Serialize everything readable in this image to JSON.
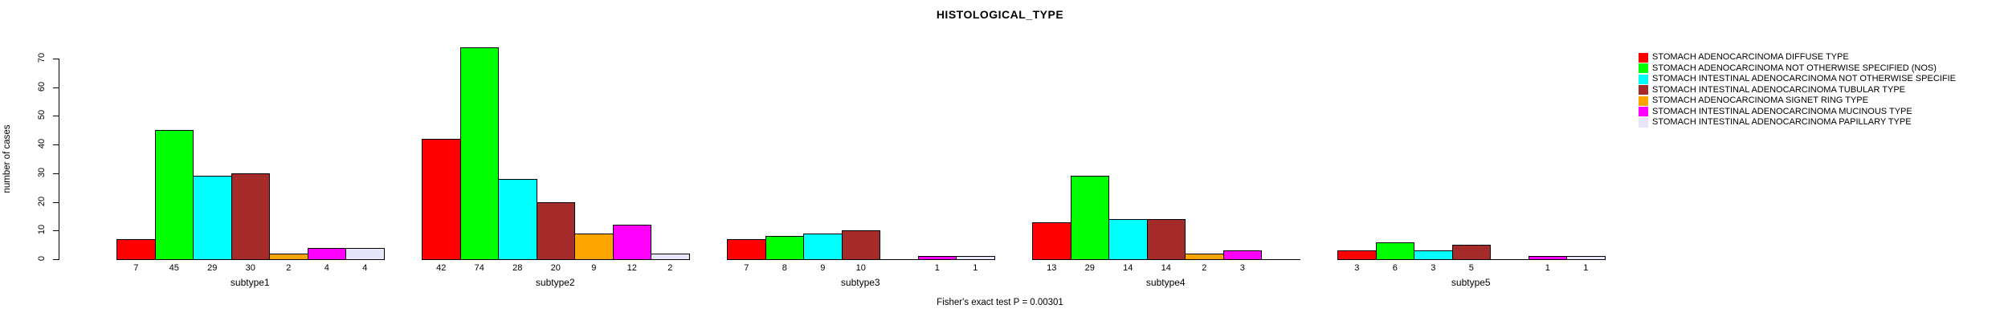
{
  "title": "HISTOLOGICAL_TYPE",
  "subtitle": "Fisher's exact test P = 0.00301",
  "ylabel": "number of cases",
  "chart_data": {
    "type": "bar",
    "grouped": true,
    "title": "HISTOLOGICAL_TYPE",
    "xlabel": "",
    "ylabel": "number of cases",
    "caption": "Fisher's exact test P = 0.00301",
    "categories": [
      "subtype1",
      "subtype2",
      "subtype3",
      "subtype4",
      "subtype5"
    ],
    "series": [
      {
        "name": "STOMACH  ADENOCARCINOMA  DIFFUSE TYPE",
        "color": "#FF0000",
        "values": [
          7,
          42,
          7,
          13,
          3
        ]
      },
      {
        "name": "STOMACH  ADENOCARCINOMA  NOT OTHERWISE SPECIFIED (NOS)",
        "color": "#00FF00",
        "values": [
          45,
          74,
          8,
          29,
          6
        ]
      },
      {
        "name": "STOMACH  INTESTINAL ADENOCARCINOMA  NOT OTHERWISE SPECIFIE",
        "color": "#00FFFF",
        "values": [
          29,
          28,
          9,
          14,
          3
        ]
      },
      {
        "name": "STOMACH  INTESTINAL ADENOCARCINOMA  TUBULAR TYPE",
        "color": "#A52A2A",
        "values": [
          30,
          20,
          10,
          14,
          5
        ]
      },
      {
        "name": "STOMACH ADENOCARCINOMA  SIGNET RING TYPE",
        "color": "#FFA500",
        "values": [
          2,
          9,
          0,
          2,
          0
        ]
      },
      {
        "name": "STOMACH INTESTINAL ADENOCARCINOMA MUCINOUS TYPE",
        "color": "#FF00FF",
        "values": [
          4,
          12,
          1,
          3,
          1
        ]
      },
      {
        "name": "STOMACH INTESTINAL ADENOCARCINOMA PAPILLARY TYPE",
        "color": "#E6E6FA",
        "values": [
          4,
          2,
          1,
          0,
          1
        ]
      }
    ],
    "yticks": [
      0,
      10,
      20,
      30,
      40,
      50,
      60,
      70
    ],
    "ylim": [
      0,
      74
    ],
    "bar_value_labels_shown": true,
    "zero_values_drawn_as_flat_line": true,
    "grid": false,
    "legend_position": "right",
    "background": "#ffffff",
    "axis_color": "#000000"
  }
}
